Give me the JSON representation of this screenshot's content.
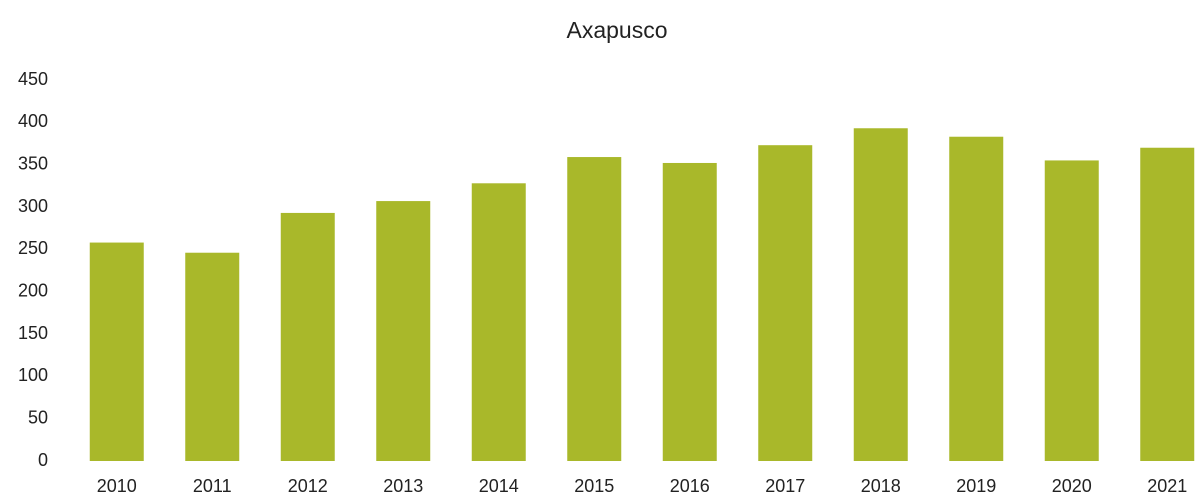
{
  "chart_data": {
    "type": "bar",
    "title": "Axapusco",
    "categories": [
      "2010",
      "2011",
      "2012",
      "2013",
      "2014",
      "2015",
      "2016",
      "2017",
      "2018",
      "2019",
      "2020",
      "2021"
    ],
    "values": [
      258,
      246,
      293,
      307,
      328,
      359,
      352,
      373,
      393,
      383,
      355,
      370
    ],
    "color": "#a9b82a",
    "ylim": [
      0,
      450
    ],
    "yticks": [
      0,
      50,
      100,
      150,
      200,
      250,
      300,
      350,
      400,
      450
    ],
    "grid": true
  }
}
